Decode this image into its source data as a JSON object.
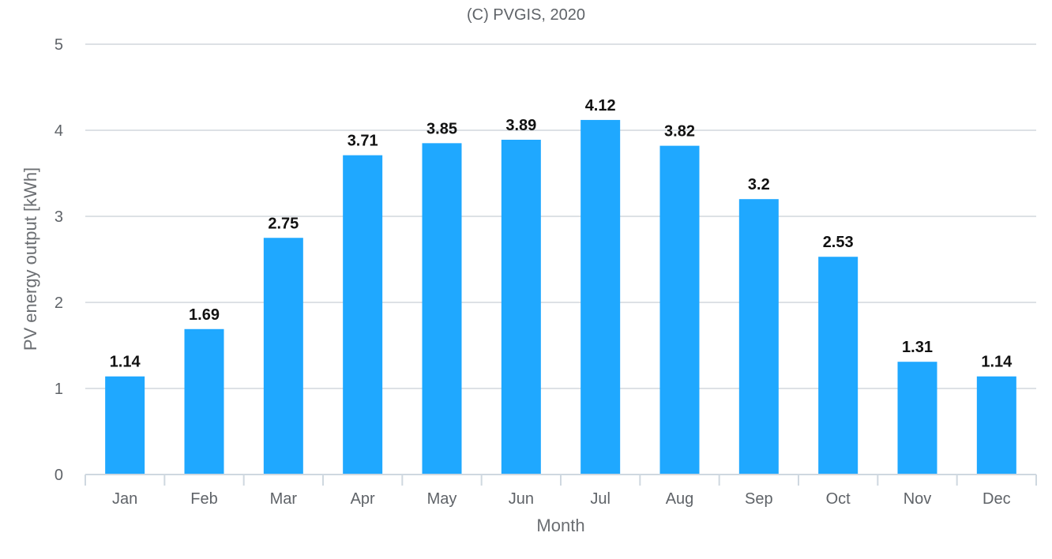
{
  "chart_data": {
    "type": "bar",
    "title": "(C) PVGIS, 2020",
    "xlabel": "Month",
    "ylabel": "PV energy output [kWh]",
    "categories": [
      "Jan",
      "Feb",
      "Mar",
      "Apr",
      "May",
      "Jun",
      "Jul",
      "Aug",
      "Sep",
      "Oct",
      "Nov",
      "Dec"
    ],
    "values": [
      1.14,
      1.69,
      2.75,
      3.71,
      3.85,
      3.89,
      4.12,
      3.82,
      3.2,
      2.53,
      1.31,
      1.14
    ],
    "data_labels": [
      "1.14",
      "1.69",
      "2.75",
      "3.71",
      "3.85",
      "3.89",
      "4.12",
      "3.82",
      "3.2",
      "2.53",
      "1.31",
      "1.14"
    ],
    "ylim": [
      0,
      5
    ],
    "yticks": [
      "0",
      "1",
      "2",
      "3",
      "4",
      "5"
    ],
    "grid": true,
    "bar_color": "#1fa8ff"
  }
}
